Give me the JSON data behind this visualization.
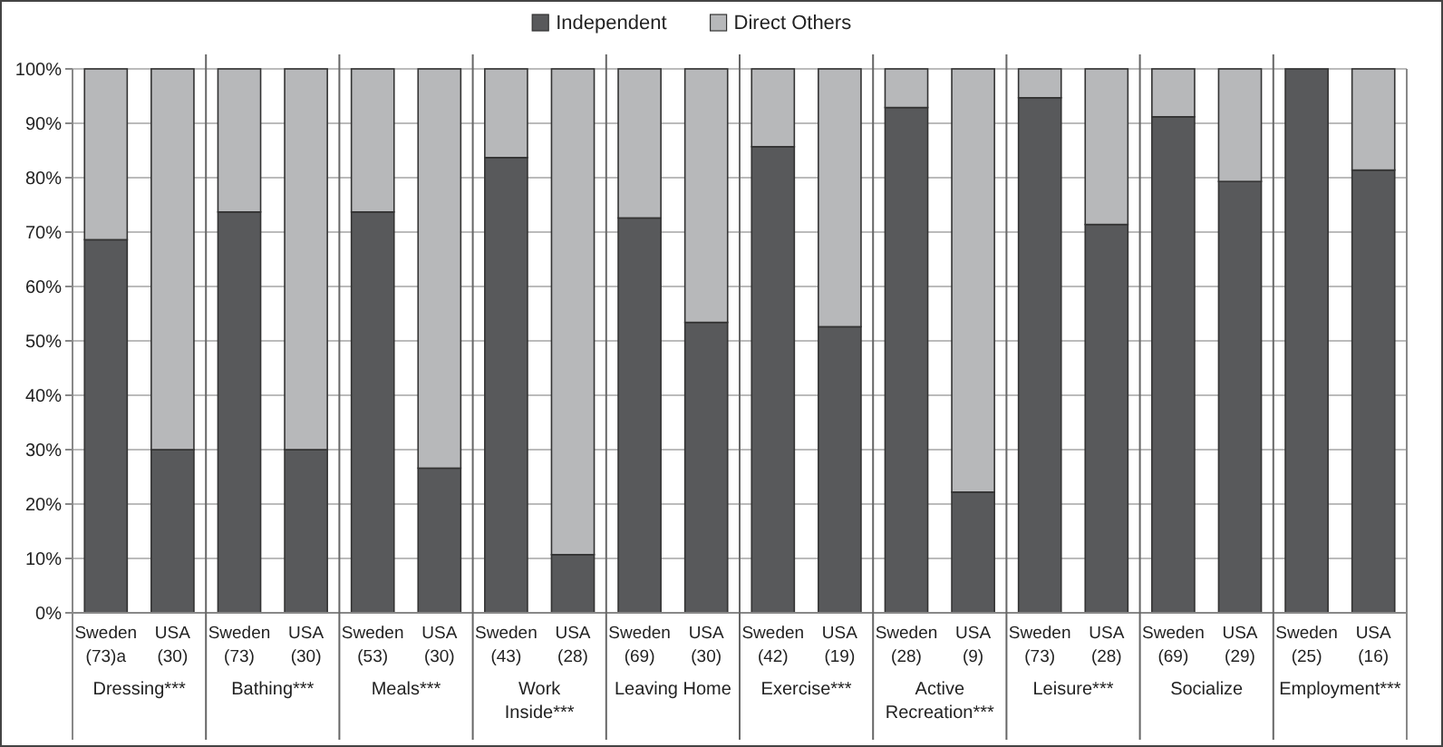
{
  "chart_data": {
    "type": "bar",
    "stacked": true,
    "legend": "top",
    "grid": "y",
    "categories": [
      "Sweden (73)a",
      "USA (30)",
      "Sweden (73)",
      "USA (30)",
      "Sweden (53)",
      "USA (30)",
      "Sweden (43)",
      "USA (28)",
      "Sweden (69)",
      "USA (30)",
      "Sweden (42)",
      "USA (19)",
      "Sweden (28)",
      "USA (9)",
      "Sweden (73)",
      "USA (28)",
      "Sweden (69)",
      "USA (29)",
      "Sweden (25)",
      "USA (16)"
    ],
    "annotations": [
      "Dressing***",
      "Bathing***",
      "Meals***",
      "Work Inside***",
      "Leaving Home",
      "Exercise***",
      "Active Recreation***",
      "Leisure***",
      "Socialize",
      "Employment***"
    ],
    "series": [
      {
        "name": "Independent",
        "color": "#58595b",
        "values": [
          68.6,
          30,
          73.7,
          30,
          73.7,
          26.6,
          83.7,
          10.7,
          72.6,
          53.4,
          85.7,
          52.6,
          92.9,
          22.2,
          94.7,
          71.4,
          91.2,
          79.3,
          100,
          81.4
        ]
      },
      {
        "name": "Direct Others",
        "color": "#b7b8ba",
        "values": [
          31.4,
          70,
          26.3,
          70,
          26.3,
          73.4,
          16.3,
          89.3,
          27.4,
          46.6,
          14.3,
          47.4,
          7.1,
          77.8,
          5.3,
          28.6,
          8.8,
          20.7,
          0,
          18.6
        ]
      }
    ],
    "ylim": [
      0,
      100
    ],
    "yticks": [
      {
        "value": 0,
        "label": "0%"
      },
      {
        "value": 10,
        "label": "10%"
      },
      {
        "value": 20,
        "label": "20%"
      },
      {
        "value": 30,
        "label": "30%"
      },
      {
        "value": 40,
        "label": "40%"
      },
      {
        "value": 50,
        "label": "50%"
      },
      {
        "value": 60,
        "label": "60%"
      },
      {
        "value": 70,
        "label": "70%"
      },
      {
        "value": 80,
        "label": "80%"
      },
      {
        "value": 90,
        "label": "90%"
      },
      {
        "value": 100,
        "label": "100%"
      }
    ]
  }
}
